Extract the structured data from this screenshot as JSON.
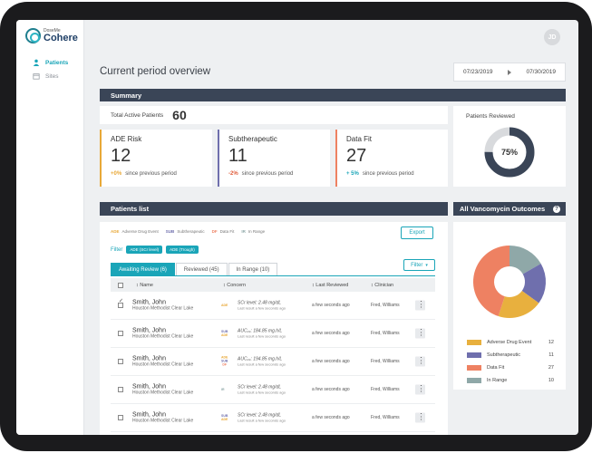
{
  "app": {
    "logo_small": "DoseMe",
    "logo_big": "Cohere",
    "avatar_initials": "JD"
  },
  "sidebar": {
    "items": [
      {
        "label": "Patients",
        "icon": "person-icon",
        "active": true
      },
      {
        "label": "Sites",
        "icon": "building-icon",
        "active": false
      }
    ]
  },
  "header": {
    "title": "Current period overview",
    "date_from": "07/23/2019",
    "date_to": "07/30/2019"
  },
  "summary": {
    "title": "Summary",
    "total_label": "Total Active Patients",
    "total_value": "60",
    "metrics": [
      {
        "title": "ADE Risk",
        "value": "12",
        "delta": "+0%",
        "delta_text": "since previous period",
        "accent": "#e8a838",
        "delta_color": "#e8a838"
      },
      {
        "title": "Subtherapeutic",
        "value": "11",
        "delta": "-2%",
        "delta_text": "since previous period",
        "accent": "#6f6fad",
        "delta_color": "#e05c3a"
      },
      {
        "title": "Data Fit",
        "value": "27",
        "delta": "+ 5%",
        "delta_text": "since previous period",
        "accent": "#ee8162",
        "delta_color": "#1aa5b8"
      }
    ],
    "reviewed_label": "Patients Reviewed",
    "reviewed_percent": "75%",
    "reviewed_fraction": 0.75
  },
  "patients": {
    "title": "Patients list",
    "legend": [
      {
        "code": "ADE",
        "text": "Adverse Drug Event",
        "color": "#e8a838"
      },
      {
        "code": "SUB",
        "text": "Subtherapeutic",
        "color": "#6f6fad"
      },
      {
        "code": "DF",
        "text": "Data Fit",
        "color": "#ee8162"
      },
      {
        "code": "IR",
        "text": "In Range",
        "color": "#8fa8a8"
      }
    ],
    "export_label": "Export",
    "filter_label": "Filter",
    "chips": [
      "ADE (SCr level)",
      "ADE (Trough)"
    ],
    "tabs": [
      "Awaiting Review (6)",
      "Reviewed (45)",
      "In Range (10)"
    ],
    "filter_button": "Filter",
    "columns": [
      "Name",
      "Concern",
      "Last Reviewed",
      "Clinician"
    ],
    "rows": [
      {
        "name": "Smith, John",
        "hospital": "Houston Methodist Clear Lake",
        "tags": [
          "ADE"
        ],
        "concern": "SCr level: 2.48 mg/dL",
        "concern_sub": "Last result a few seconds ago",
        "reviewed": "a few seconds ago",
        "clinician": "Fred, Williams",
        "checked": true
      },
      {
        "name": "Smith, John",
        "hospital": "Houston Methodist Clear Lake",
        "tags": [
          "SUB",
          "ADE"
        ],
        "concern": "AUC₂₄: 184.85 mg.h/L",
        "concern_sub": "Last result a few seconds ago",
        "reviewed": "a few seconds ago",
        "clinician": "Fred, Williams",
        "checked": false
      },
      {
        "name": "Smith, John",
        "hospital": "Houston Methodist Clear Lake",
        "tags": [
          "ADE",
          "SUB",
          "DF"
        ],
        "concern": "AUC₂₄: 194.85 mg.h/L",
        "concern_sub": "Last result a few seconds ago",
        "reviewed": "a few seconds ago",
        "clinician": "Fred, Williams",
        "checked": false
      },
      {
        "name": "Smith, John",
        "hospital": "Houston Methodist Clear Lake",
        "tags": [
          "IR"
        ],
        "concern": "SCr level: 2.48 mg/dL",
        "concern_sub": "Last result a few seconds ago",
        "reviewed": "a few seconds ago",
        "clinician": "Fred, Williams",
        "checked": false
      },
      {
        "name": "Smith, John",
        "hospital": "Houston Methodist Clear Lake",
        "tags": [
          "SUB",
          "ADE"
        ],
        "concern": "SCr level: 2.48 mg/dL",
        "concern_sub": "Last result a few seconds ago",
        "reviewed": "a few seconds ago",
        "clinician": "Fred, Williams",
        "checked": false
      }
    ]
  },
  "outcomes": {
    "title": "All Vancomycin Outcomes",
    "info_icon": "question-icon",
    "items": [
      {
        "label": "Adverse Drug Event",
        "value": 12,
        "color": "#e8b03e"
      },
      {
        "label": "Subtherapeutic",
        "value": 11,
        "color": "#6f6fad"
      },
      {
        "label": "Data Fit",
        "value": 27,
        "color": "#ee8162"
      },
      {
        "label": "In Range",
        "value": 10,
        "color": "#8fa8a8"
      }
    ],
    "chart_order": [
      {
        "label": "In Range",
        "value": 10
      },
      {
        "label": "Subtherapeutic",
        "value": 11
      },
      {
        "label": "Adverse Drug Event",
        "value": 12
      },
      {
        "label": "Data Fit",
        "value": 27
      }
    ]
  }
}
